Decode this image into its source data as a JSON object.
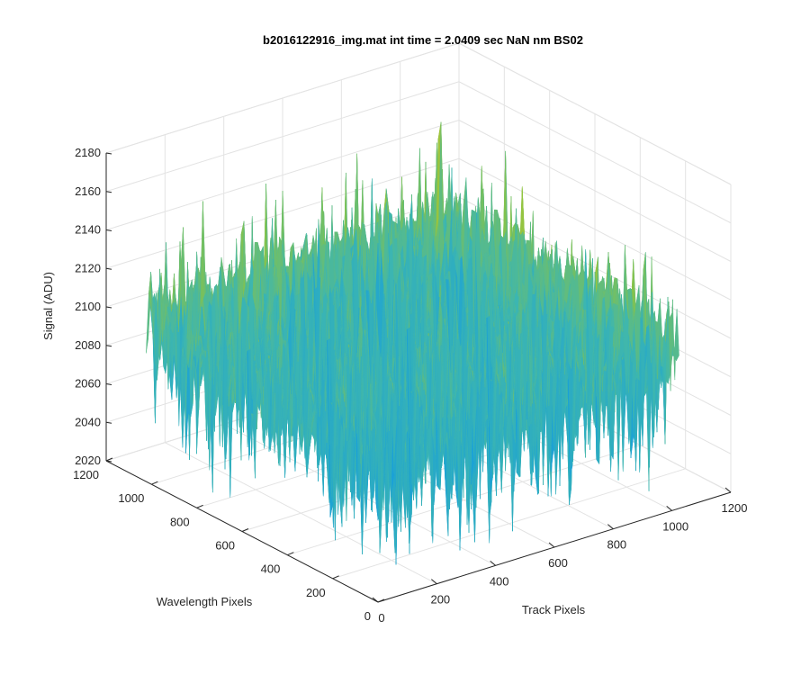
{
  "chart_data": {
    "type": "surface",
    "title": "b2016122916_img.mat int time = 2.0409 sec  NaN nm BS02",
    "xlabel": "Track Pixels",
    "ylabel": "Wavelength Pixels",
    "zlabel": "Signal (ADU)",
    "xlim": [
      0,
      1200
    ],
    "ylim": [
      0,
      1200
    ],
    "zlim": [
      2020,
      2180
    ],
    "x_ticks": [
      0,
      200,
      400,
      600,
      800,
      1000,
      1200
    ],
    "y_ticks": [
      0,
      200,
      400,
      600,
      800,
      1000,
      1200
    ],
    "z_ticks": [
      2020,
      2040,
      2060,
      2080,
      2100,
      2120,
      2140,
      2160,
      2180
    ],
    "data_extent": {
      "x": [
        0,
        1024
      ],
      "y": [
        0,
        1024
      ]
    },
    "signal_mean": 2103,
    "signal_range": [
      2030,
      2160
    ],
    "colormap": "parula",
    "colors": [
      "#0072BD",
      "#1AA1D8",
      "#3DB6B0",
      "#8DC440",
      "#F2C73A"
    ],
    "grid": "on",
    "view": "3d"
  }
}
